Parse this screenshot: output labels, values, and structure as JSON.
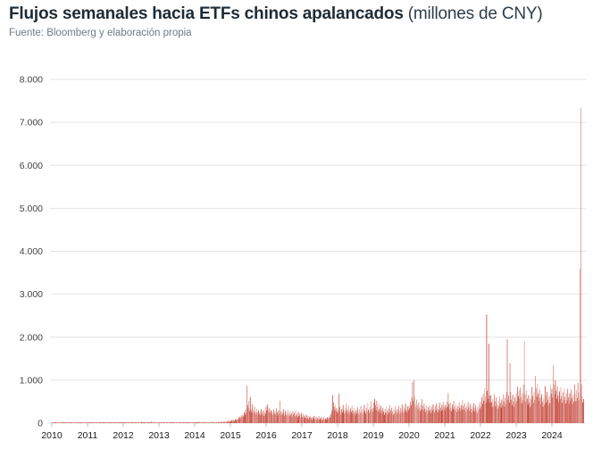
{
  "header": {
    "title_main": "Flujos semanales hacia ETFs chinos apalancados",
    "title_suffix": "(millones de CNY)",
    "source": "Fuente: Bloomberg y elaboración propia"
  },
  "colors": {
    "title": "#1e2b36",
    "subtitle": "#6e7b85",
    "grid": "#e4e4e4",
    "y_label": "#444444",
    "x_label": "#1a1a1a",
    "tick_mark": "#bbbbbb",
    "background": "#ffffff"
  },
  "chart_data": {
    "type": "bar",
    "title": "Flujos semanales hacia ETFs chinos apalancados (millones de CNY)",
    "source": "Fuente: Bloomberg y elaboración propia",
    "xlabel": "",
    "ylabel": "",
    "frequency": "weekly",
    "x_start_year": 2010,
    "x_tick_labels": [
      "2010",
      "2011",
      "2012",
      "2013",
      "2014",
      "2015",
      "2016",
      "2017",
      "2018",
      "2019",
      "2020",
      "2021",
      "2022",
      "2023",
      "2024"
    ],
    "y_tick_values": [
      0,
      1000,
      2000,
      3000,
      4000,
      5000,
      6000,
      7000,
      8000
    ],
    "y_tick_labels": [
      "0",
      "1.000",
      "2.000",
      "3.000",
      "4.000",
      "5.000",
      "6.000",
      "7.000",
      "8.000"
    ],
    "ylim": [
      0,
      8000
    ],
    "grid": true,
    "legend": "none",
    "bar_color": "#c0392b",
    "bar_color_light": "#e8a49d",
    "notable_points": [
      {
        "period": "jun 2015",
        "value": 870
      },
      {
        "period": "feb-mar 2020",
        "value": 1000
      },
      {
        "period": "mar 2022",
        "value": 2530
      },
      {
        "period": "oct 2022",
        "value": 1950
      },
      {
        "period": "abr 2023",
        "value": 1900
      },
      {
        "period": "oct 2024",
        "value": 7330
      }
    ],
    "values": [
      5,
      3,
      8,
      4,
      12,
      6,
      3,
      15,
      8,
      5,
      4,
      10,
      18,
      7,
      5,
      12,
      4,
      8,
      14,
      6,
      10,
      4,
      8,
      12,
      5,
      20,
      9,
      4,
      7,
      5,
      12,
      8,
      4,
      10,
      6,
      15,
      8,
      11,
      5,
      4,
      9,
      7,
      22,
      5,
      12,
      4,
      8,
      10,
      6,
      14,
      8,
      11,
      8,
      5,
      14,
      7,
      10,
      18,
      6,
      9,
      15,
      8,
      12,
      6,
      20,
      10,
      7,
      16,
      8,
      12,
      25,
      9,
      14,
      7,
      11,
      18,
      8,
      22,
      12,
      6,
      10,
      15,
      9,
      13,
      7,
      19,
      11,
      8,
      16,
      10,
      24,
      7,
      13,
      9,
      17,
      11,
      8,
      20,
      12,
      15,
      9,
      26,
      11,
      14,
      10,
      7,
      16,
      9,
      22,
      12,
      8,
      18,
      11,
      14,
      9,
      25,
      13,
      10,
      20,
      12,
      16,
      9,
      28,
      14,
      11,
      19,
      10,
      24,
      13,
      17,
      11,
      30,
      15,
      12,
      21,
      13,
      18,
      10,
      26,
      14,
      12,
      22,
      11,
      16,
      13,
      32,
      15,
      10,
      19,
      12,
      25,
      14,
      17,
      11,
      28,
      13,
      9,
      14,
      8,
      20,
      11,
      16,
      10,
      26,
      13,
      9,
      18,
      12,
      22,
      10,
      15,
      9,
      30,
      14,
      11,
      19,
      12,
      24,
      10,
      16,
      13,
      28,
      11,
      17,
      9,
      21,
      14,
      12,
      25,
      10,
      18,
      13,
      31,
      11,
      15,
      12,
      23,
      9,
      17,
      14,
      27,
      10,
      19,
      12,
      22,
      15,
      11,
      24,
      12,
      18,
      10,
      25,
      14,
      20,
      12,
      30,
      16,
      11,
      22,
      15,
      28,
      12,
      19,
      14,
      35,
      17,
      13,
      24,
      15,
      30,
      12,
      20,
      16,
      38,
      14,
      22,
      11,
      26,
      17,
      15,
      32,
      13,
      23,
      16,
      40,
      14,
      19,
      15,
      45,
      12,
      28,
      18,
      52,
      15,
      35,
      22,
      60,
      28,
      48,
      38,
      55,
      42,
      70,
      48,
      85,
      60,
      52,
      95,
      68,
      75,
      110,
      85,
      130,
      95,
      150,
      120,
      180,
      140,
      210,
      160,
      250,
      190,
      310,
      230,
      870,
      420,
      350,
      520,
      280,
      610,
      330,
      260,
      440,
      300,
      230,
      380,
      270,
      210,
      330,
      250,
      190,
      300,
      220,
      260,
      180,
      320,
      240,
      200,
      290,
      170,
      250,
      210,
      380,
      290,
      430,
      320,
      260,
      350,
      240,
      300,
      210,
      270,
      190,
      320,
      230,
      280,
      200,
      350,
      250,
      180,
      300,
      220,
      520,
      260,
      190,
      280,
      210,
      330,
      240,
      170,
      290,
      200,
      250,
      180,
      310,
      220,
      160,
      270,
      190,
      230,
      150,
      280,
      200,
      240,
      160,
      300,
      180,
      220,
      140,
      260,
      170,
      210,
      130,
      240,
      190,
      140,
      220,
      160,
      120,
      180,
      130,
      200,
      110,
      160,
      90,
      140,
      170,
      100,
      130,
      80,
      150,
      110,
      170,
      90,
      120,
      150,
      70,
      130,
      100,
      160,
      80,
      110,
      140,
      60,
      120,
      90,
      150,
      70,
      100,
      130,
      80,
      140,
      100,
      120,
      160,
      130,
      200,
      260,
      320,
      650,
      480,
      380,
      300,
      420,
      350,
      280,
      240,
      320,
      680,
      380,
      280,
      200,
      330,
      250,
      420,
      300,
      220,
      360,
      270,
      450,
      310,
      230,
      390,
      280,
      200,
      340,
      260,
      410,
      290,
      210,
      350,
      250,
      180,
      300,
      230,
      370,
      260,
      200,
      320,
      240,
      400,
      280,
      210,
      330,
      250,
      430,
      290,
      220,
      360,
      270,
      480,
      310,
      240,
      380,
      290,
      510,
      330,
      260,
      350,
      480,
      560,
      420,
      300,
      520,
      380,
      280,
      450,
      330,
      240,
      400,
      300,
      220,
      360,
      270,
      190,
      320,
      240,
      380,
      280,
      200,
      340,
      250,
      420,
      300,
      220,
      360,
      270,
      200,
      310,
      230,
      390,
      280,
      210,
      330,
      250,
      400,
      290,
      220,
      350,
      260,
      430,
      310,
      240,
      370,
      280,
      450,
      320,
      250,
      390,
      300,
      400,
      350,
      500,
      420,
      600,
      950,
      520,
      1000,
      620,
      450,
      380,
      550,
      420,
      320,
      480,
      360,
      280,
      430,
      320,
      560,
      400,
      300,
      450,
      340,
      260,
      410,
      310,
      230,
      370,
      280,
      420,
      320,
      240,
      380,
      290,
      440,
      330,
      250,
      400,
      300,
      460,
      340,
      260,
      410,
      310,
      480,
      360,
      280,
      430,
      320,
      500,
      380,
      300,
      420,
      350,
      500,
      380,
      700,
      450,
      320,
      480,
      360,
      280,
      430,
      330,
      520,
      390,
      300,
      450,
      340,
      260,
      400,
      310,
      480,
      360,
      280,
      420,
      320,
      540,
      400,
      310,
      460,
      350,
      270,
      410,
      320,
      490,
      370,
      290,
      440,
      330,
      250,
      390,
      300,
      460,
      350,
      270,
      420,
      320,
      240,
      380,
      290,
      450,
      340,
      500,
      380,
      600,
      450,
      680,
      520,
      800,
      620,
      470,
      2530,
      750,
      560,
      1850,
      640,
      480,
      650,
      490,
      370,
      560,
      420,
      680,
      510,
      390,
      600,
      450,
      340,
      520,
      400,
      620,
      470,
      360,
      550,
      410,
      670,
      500,
      380,
      590,
      440,
      720,
      1950,
      540,
      640,
      480,
      1400,
      730,
      550,
      420,
      660,
      500,
      380,
      600,
      460,
      700,
      520,
      850,
      630,
      760,
      570,
      820,
      610,
      460,
      700,
      530,
      900,
      1900,
      670,
      500,
      760,
      570,
      430,
      650,
      490,
      370,
      560,
      420,
      840,
      630,
      470,
      720,
      540,
      1100,
      810,
      610,
      920,
      690,
      520,
      780,
      590,
      440,
      670,
      500,
      380,
      570,
      430,
      860,
      640,
      480,
      730,
      550,
      410,
      620,
      470,
      900,
      680,
      800,
      600,
      1350,
      900,
      680,
      1000,
      760,
      570,
      860,
      650,
      490,
      740,
      560,
      840,
      630,
      470,
      720,
      540,
      810,
      610,
      460,
      700,
      530,
      800,
      600,
      450,
      690,
      520,
      780,
      590,
      440,
      670,
      500,
      900,
      680,
      510,
      770,
      580,
      940,
      710,
      530,
      3600,
      7330,
      900,
      620,
      480,
      560
    ]
  }
}
